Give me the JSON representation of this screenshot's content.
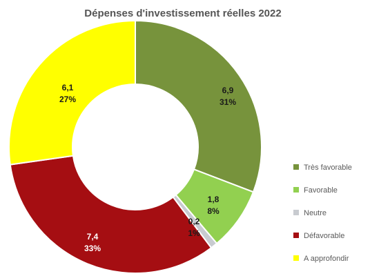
{
  "chart_data": {
    "type": "pie",
    "title": "Dépenses d'investissement réelles 2022",
    "variant": "donut",
    "legend_position": "right",
    "slices": [
      {
        "label": "Très favorable",
        "value": 6.9,
        "value_label": "6,9",
        "percent_label": "31%",
        "color": "#77933C",
        "text_color": "#1a1a1a"
      },
      {
        "label": "Favorable",
        "value": 1.8,
        "value_label": "1,8",
        "percent_label": "8%",
        "color": "#92D050",
        "text_color": "#1a1a1a"
      },
      {
        "label": "Neutre",
        "value": 0.2,
        "value_label": "0,2",
        "percent_label": "1%",
        "color": "#C8CBD0",
        "text_color": "#1a1a1a"
      },
      {
        "label": "Défavorable",
        "value": 7.4,
        "value_label": "7,4",
        "percent_label": "33%",
        "color": "#A50E12",
        "text_color": "#ffffff"
      },
      {
        "label": "A approfondir",
        "value": 6.1,
        "value_label": "6,1",
        "percent_label": "27%",
        "color": "#FFFF00",
        "text_color": "#1a1a1a"
      }
    ]
  }
}
